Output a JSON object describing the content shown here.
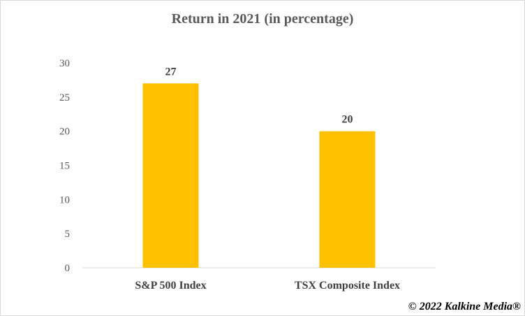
{
  "chart_data": {
    "type": "bar",
    "title": "Return in 2021 (in percentage)",
    "categories": [
      "S&P 500 Index",
      "TSX Composite Index"
    ],
    "values": [
      27,
      20
    ],
    "data_labels": [
      "27",
      "20"
    ],
    "ylim": [
      0,
      30
    ],
    "yticks": [
      0,
      5,
      10,
      15,
      20,
      25,
      30
    ],
    "grid": false,
    "legend": "none",
    "bar_color": "#FFC000",
    "axis_color": "#d9d9d9"
  },
  "footer": {
    "copyright": "© 2022 Kalkine Media®"
  }
}
